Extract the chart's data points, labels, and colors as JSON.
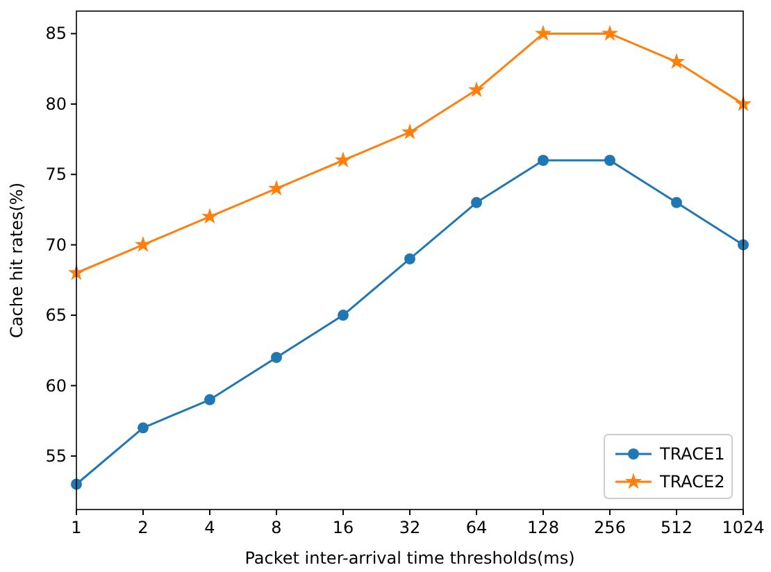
{
  "chart_data": {
    "type": "line",
    "xlabel": "Packet inter-arrival time thresholds(ms)",
    "ylabel": "Cache hit rates(%)",
    "categories": [
      "1",
      "2",
      "4",
      "8",
      "16",
      "32",
      "64",
      "128",
      "256",
      "512",
      "1024"
    ],
    "series": [
      {
        "name": "TRACE1",
        "color": "#1f77b4",
        "marker": "circle",
        "values": [
          53,
          57,
          59,
          62,
          65,
          69,
          73,
          76,
          76,
          73,
          70
        ]
      },
      {
        "name": "TRACE2",
        "color": "#ff7f0e",
        "marker": "star",
        "values": [
          68,
          70,
          72,
          74,
          76,
          78,
          81,
          85,
          85,
          83,
          80
        ]
      }
    ],
    "ylim": [
      51.2,
      86.6
    ],
    "yticks": [
      55,
      60,
      65,
      70,
      75,
      80,
      85
    ],
    "legend": "bottom right",
    "grid": false
  }
}
